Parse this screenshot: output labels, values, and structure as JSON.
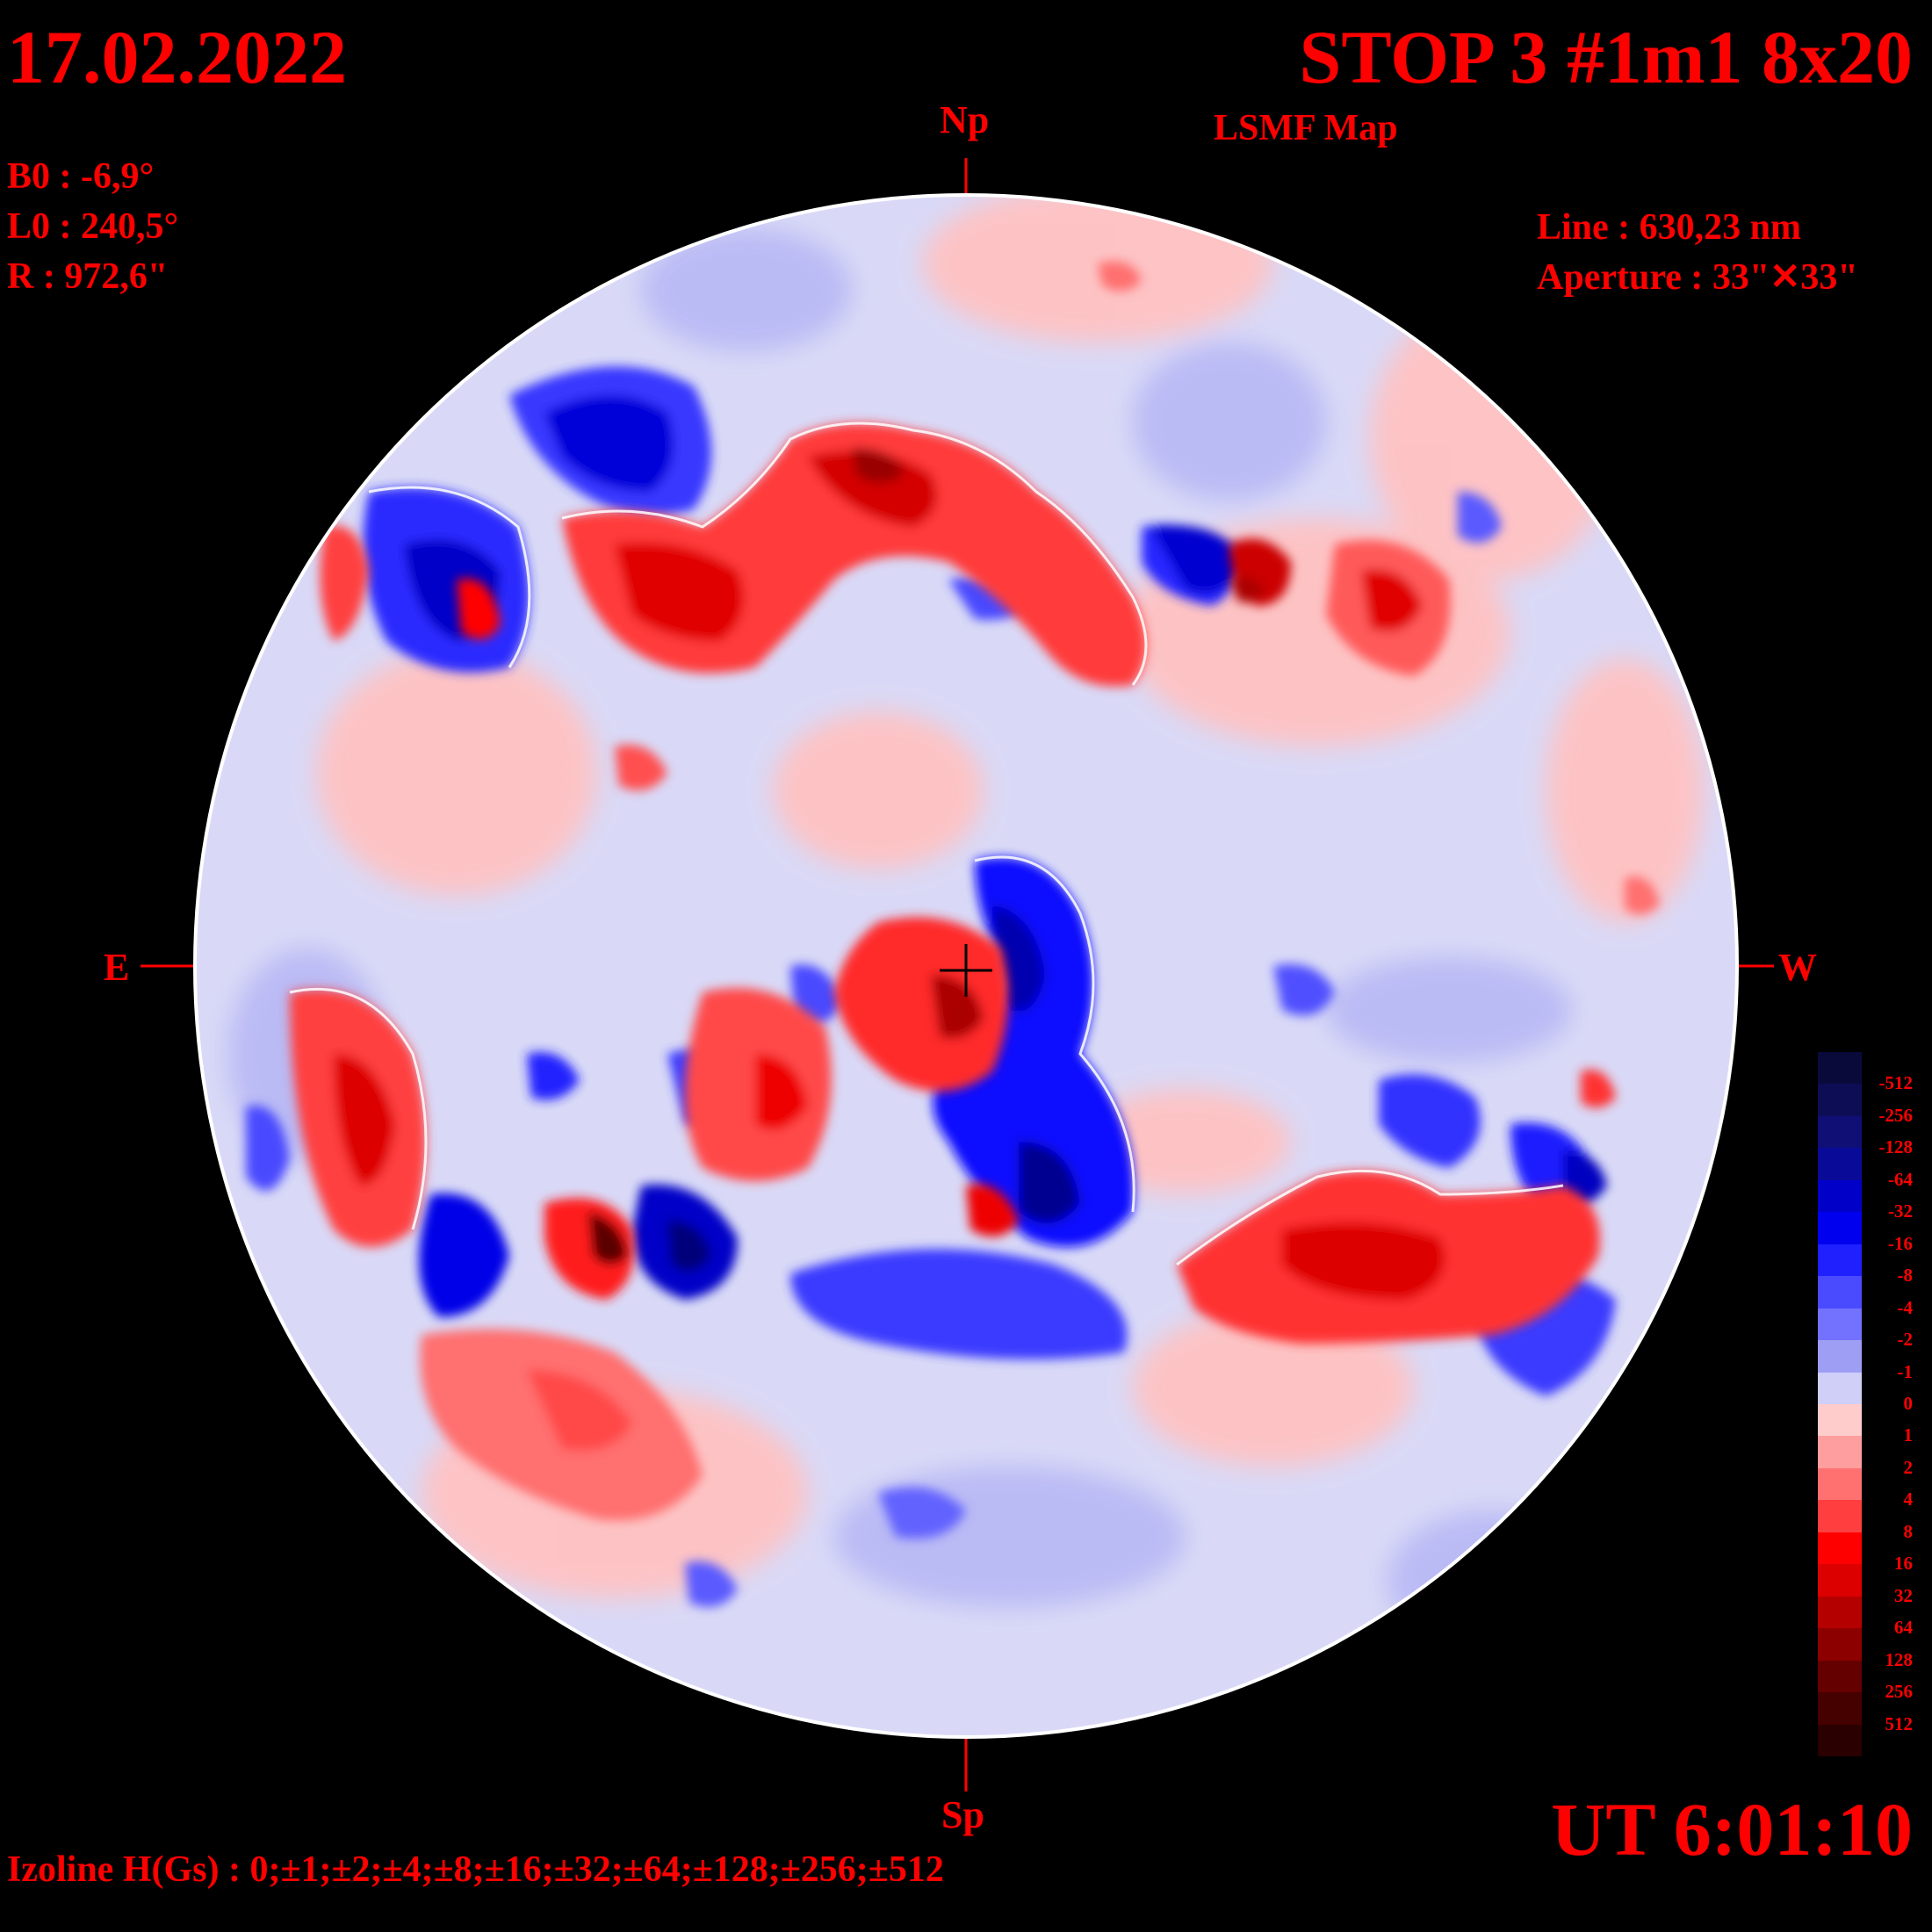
{
  "header": {
    "date": "17.02.2022",
    "title": "STOP 3 #1m1 8x20",
    "subtitle": "LSMF  Map"
  },
  "parameters": {
    "b0": "B0 : -6,9°",
    "l0": "L0 : 240,5°",
    "r": "R  : 972,6\"",
    "line": "Line :  630,23 nm",
    "aperture": "Aperture : 33\"✕33\""
  },
  "directions": {
    "north": "Np",
    "south": "Sp",
    "east": "E",
    "west": "W"
  },
  "time": "UT 6:01:10",
  "isolines": "Izoline H(Gs) : 0;±1;±2;±4;±8;±16;±32;±64;±128;±256;±512",
  "colorbar": {
    "labels": [
      "-512",
      "-256",
      "-128",
      "-64",
      "-32",
      "-16",
      "-8",
      "-4",
      "-2",
      "-1",
      "0",
      "1",
      "2",
      "4",
      "8",
      "16",
      "32",
      "64",
      "128",
      "256",
      "512"
    ],
    "colors": [
      "#0a0a3a",
      "#0d0d55",
      "#0f0f75",
      "#0a0a99",
      "#0000c8",
      "#0000ee",
      "#2020ff",
      "#4a4aff",
      "#7272ff",
      "#9e9ef5",
      "#cfcff8",
      "#ffcccc",
      "#ff9e9e",
      "#ff7070",
      "#ff3f3f",
      "#ff0000",
      "#dd0000",
      "#b50000",
      "#8d0000",
      "#650000",
      "#450000",
      "#2a0000"
    ]
  },
  "map_data": {
    "type": "magnetic-field-map",
    "field_unit": "Gs",
    "regions": [
      {
        "polarity": "positive",
        "level": "32",
        "location": "north-central red arc"
      },
      {
        "polarity": "negative",
        "level": "-32",
        "location": "north-west blue patch"
      },
      {
        "polarity": "negative",
        "level": "-64",
        "location": "central blue plume"
      },
      {
        "polarity": "positive",
        "level": "64",
        "location": "central red patch near cross"
      },
      {
        "polarity": "positive",
        "level": "32",
        "location": "south-east red band"
      },
      {
        "polarity": "positive",
        "level": "32",
        "location": "east-limb red patch"
      },
      {
        "polarity": "negative",
        "level": "-32",
        "location": "south blue band"
      }
    ]
  }
}
